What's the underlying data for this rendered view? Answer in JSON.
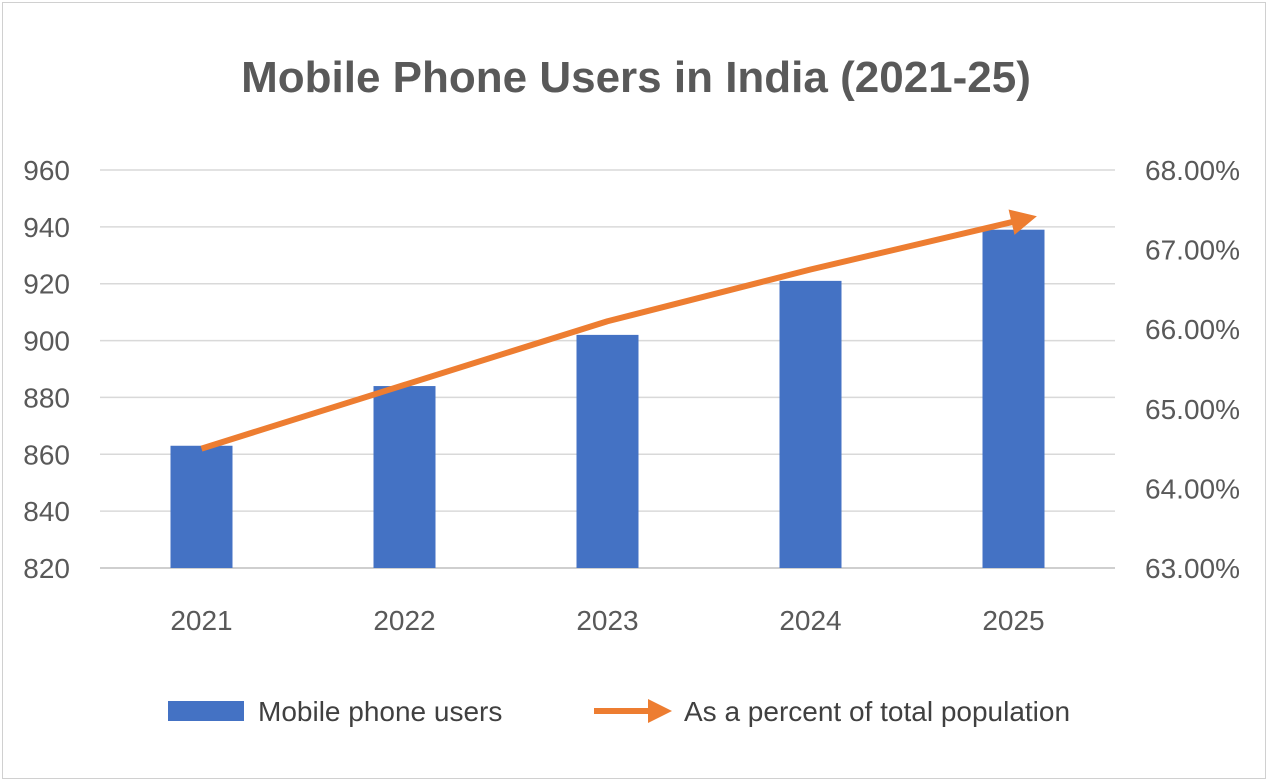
{
  "chart_data": {
    "type": "bar",
    "title": "Mobile Phone Users in India (2021-25)",
    "categories": [
      "2021",
      "2022",
      "2023",
      "2024",
      "2025"
    ],
    "series": [
      {
        "name": "Mobile phone users",
        "type": "bar",
        "axis": "left",
        "color": "#4472C4",
        "values": [
          863,
          884,
          902,
          921,
          939
        ]
      },
      {
        "name": "As a percent of total population",
        "type": "line",
        "axis": "right",
        "color": "#ED7D31",
        "values": [
          64.5,
          65.3,
          66.1,
          66.75,
          67.35
        ]
      }
    ],
    "y_left": {
      "min": 820,
      "max": 960,
      "step": 20,
      "tick_labels": [
        "820",
        "840",
        "860",
        "880",
        "900",
        "920",
        "940",
        "960"
      ]
    },
    "y_right": {
      "min": 63,
      "max": 68,
      "step": 1,
      "tick_labels": [
        "63.00%",
        "64.00%",
        "65.00%",
        "66.00%",
        "67.00%",
        "68.00%"
      ]
    },
    "grid": true,
    "legend_position": "bottom"
  },
  "legend": {
    "bar_label": "Mobile phone users",
    "line_label": "As a percent of total population"
  }
}
